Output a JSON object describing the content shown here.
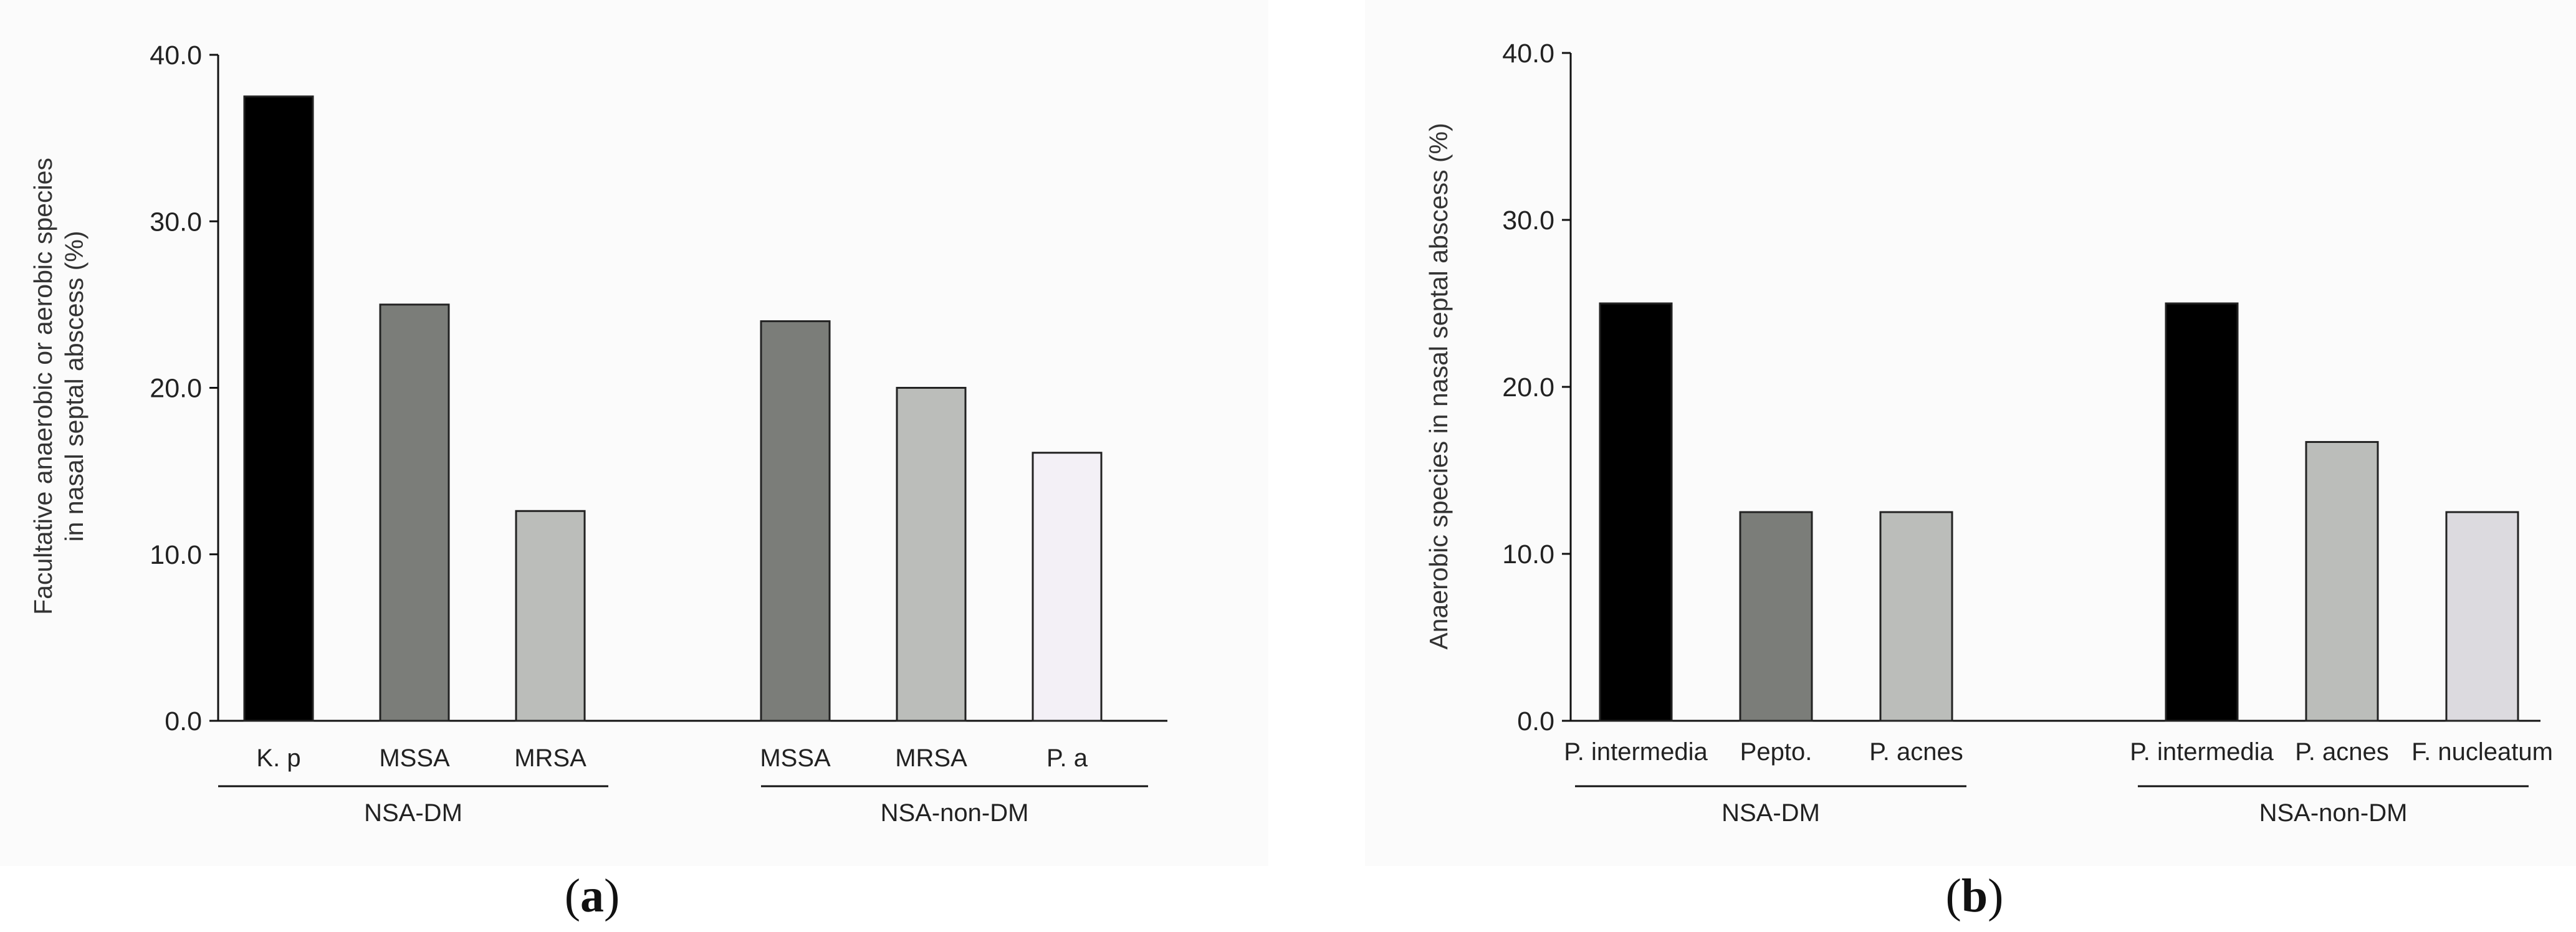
{
  "chart_data": [
    {
      "panel": "a",
      "type": "bar",
      "ylabel_lines": [
        "Facultative anaerobic or aerobic species",
        "in nasal septal abscess (%)"
      ],
      "ylim": [
        0,
        40
      ],
      "yticks": [
        "0.0",
        "10.0",
        "20.0",
        "30.0",
        "40.0"
      ],
      "groups": [
        {
          "name": "NSA-DM",
          "bars": [
            {
              "label": "K. p",
              "value": 37.5,
              "color": "#000000"
            },
            {
              "label": "MSSA",
              "value": 25.0,
              "color": "#7b7d79"
            },
            {
              "label": "MRSA",
              "value": 12.6,
              "color": "#bbbdba"
            }
          ]
        },
        {
          "name": "NSA-non-DM",
          "bars": [
            {
              "label": "MSSA",
              "value": 24.0,
              "color": "#7b7d79"
            },
            {
              "label": "MRSA",
              "value": 20.0,
              "color": "#bbbdba"
            },
            {
              "label": "P. a",
              "value": 16.1,
              "color": "#f3f0f6"
            }
          ]
        }
      ]
    },
    {
      "panel": "b",
      "type": "bar",
      "ylabel_lines": [
        "Anaerobic species in nasal septal abscess (%)"
      ],
      "ylim": [
        0,
        40
      ],
      "yticks": [
        "0.0",
        "10.0",
        "20.0",
        "30.0",
        "40.0"
      ],
      "groups": [
        {
          "name": "NSA-DM",
          "bars": [
            {
              "label": "P. intermedia",
              "value": 25.0,
              "color": "#000000"
            },
            {
              "label": "Pepto.",
              "value": 12.5,
              "color": "#7b7d79"
            },
            {
              "label": "P. acnes",
              "value": 12.5,
              "color": "#bbbdba"
            }
          ]
        },
        {
          "name": "NSA-non-DM",
          "bars": [
            {
              "label": "P. intermedia",
              "value": 25.0,
              "color": "#000000"
            },
            {
              "label": "P. acnes",
              "value": 16.7,
              "color": "#bbbdba"
            },
            {
              "label": "F. nucleatum",
              "value": 12.5,
              "color": "#dcdadf"
            }
          ]
        }
      ]
    }
  ],
  "panel_labels": [
    "a",
    "b"
  ]
}
